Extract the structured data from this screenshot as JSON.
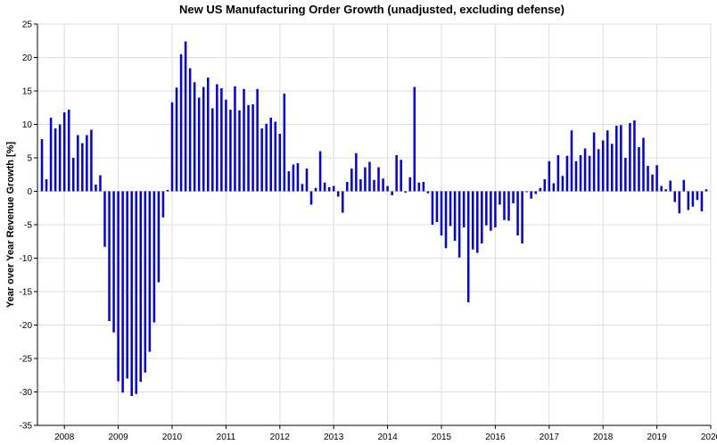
{
  "chart_data": {
    "type": "bar",
    "title": "New US Manufacturing Order Growth (unadjusted, excluding defense)",
    "xlabel": "",
    "ylabel": "Year over Year Revenue Growth [%]",
    "ylim": [
      -35,
      25
    ],
    "yticks": [
      25,
      20,
      15,
      10,
      5,
      0,
      -5,
      -10,
      -15,
      -20,
      -25,
      -30,
      -35
    ],
    "xlim": [
      "2007-07",
      "2020-01"
    ],
    "xticks": [
      "2008",
      "2009",
      "2010",
      "2011",
      "2012",
      "2013",
      "2014",
      "2015",
      "2016",
      "2017",
      "2018",
      "2019",
      "2020"
    ],
    "grid": true,
    "bar_color": "#0000ee",
    "series": [
      {
        "start": "2007-08",
        "frequency": "monthly",
        "values": [
          7.8,
          1.8,
          11.0,
          9.4,
          10.0,
          11.8,
          12.2,
          5.0,
          8.4,
          7.2,
          8.4,
          9.2,
          1.0,
          2.4,
          -8.3,
          -19.4,
          -21.1,
          -28.4,
          -30.1,
          -28.0,
          -30.6,
          -30.3,
          -28.5,
          -27.1,
          -24.0,
          -19.6,
          -13.6,
          -3.9,
          0.2,
          13.3,
          15.5,
          20.5,
          22.4,
          18.4,
          16.3,
          14.0,
          15.6,
          17.0,
          12.4,
          16.0,
          15.4,
          13.7,
          12.2,
          15.7,
          12.1,
          15.3,
          12.9,
          13.0,
          15.3,
          9.4,
          10.1,
          11.0,
          10.4,
          8.6,
          14.6,
          3.0,
          4.0,
          4.2,
          1.1,
          3.4,
          -2.0,
          0.5,
          6.0,
          1.3,
          0.6,
          0.8,
          -0.8,
          -3.2,
          1.4,
          3.4,
          5.7,
          1.8,
          3.6,
          4.4,
          1.7,
          3.6,
          1.9,
          0.8,
          -0.6,
          5.4,
          4.7,
          -0.2,
          2.1,
          15.6,
          1.3,
          1.4,
          -0.3,
          -5.0,
          -4.6,
          -6.6,
          -8.5,
          -5.2,
          -7.4,
          -9.9,
          -5.4,
          -16.6,
          -8.7,
          -9.2,
          -7.8,
          -5.1,
          -5.9,
          -5.4,
          -2.0,
          -4.3,
          -4.4,
          -1.8,
          -6.6,
          -7.8,
          0.0,
          -1.1,
          -0.4,
          0.5,
          1.8,
          4.5,
          1.2,
          5.4,
          2.3,
          5.3,
          9.1,
          4.5,
          5.4,
          6.4,
          5.3,
          8.8,
          6.3,
          7.6,
          9.1,
          7.1,
          9.8,
          9.9,
          5.0,
          10.2,
          10.6,
          6.6,
          8.0,
          3.8,
          2.5,
          3.9,
          0.8,
          0.3,
          1.6,
          -1.6,
          -3.3,
          1.7,
          -2.8,
          -2.3,
          -1.3,
          -3.0,
          0.3
        ]
      }
    ]
  }
}
